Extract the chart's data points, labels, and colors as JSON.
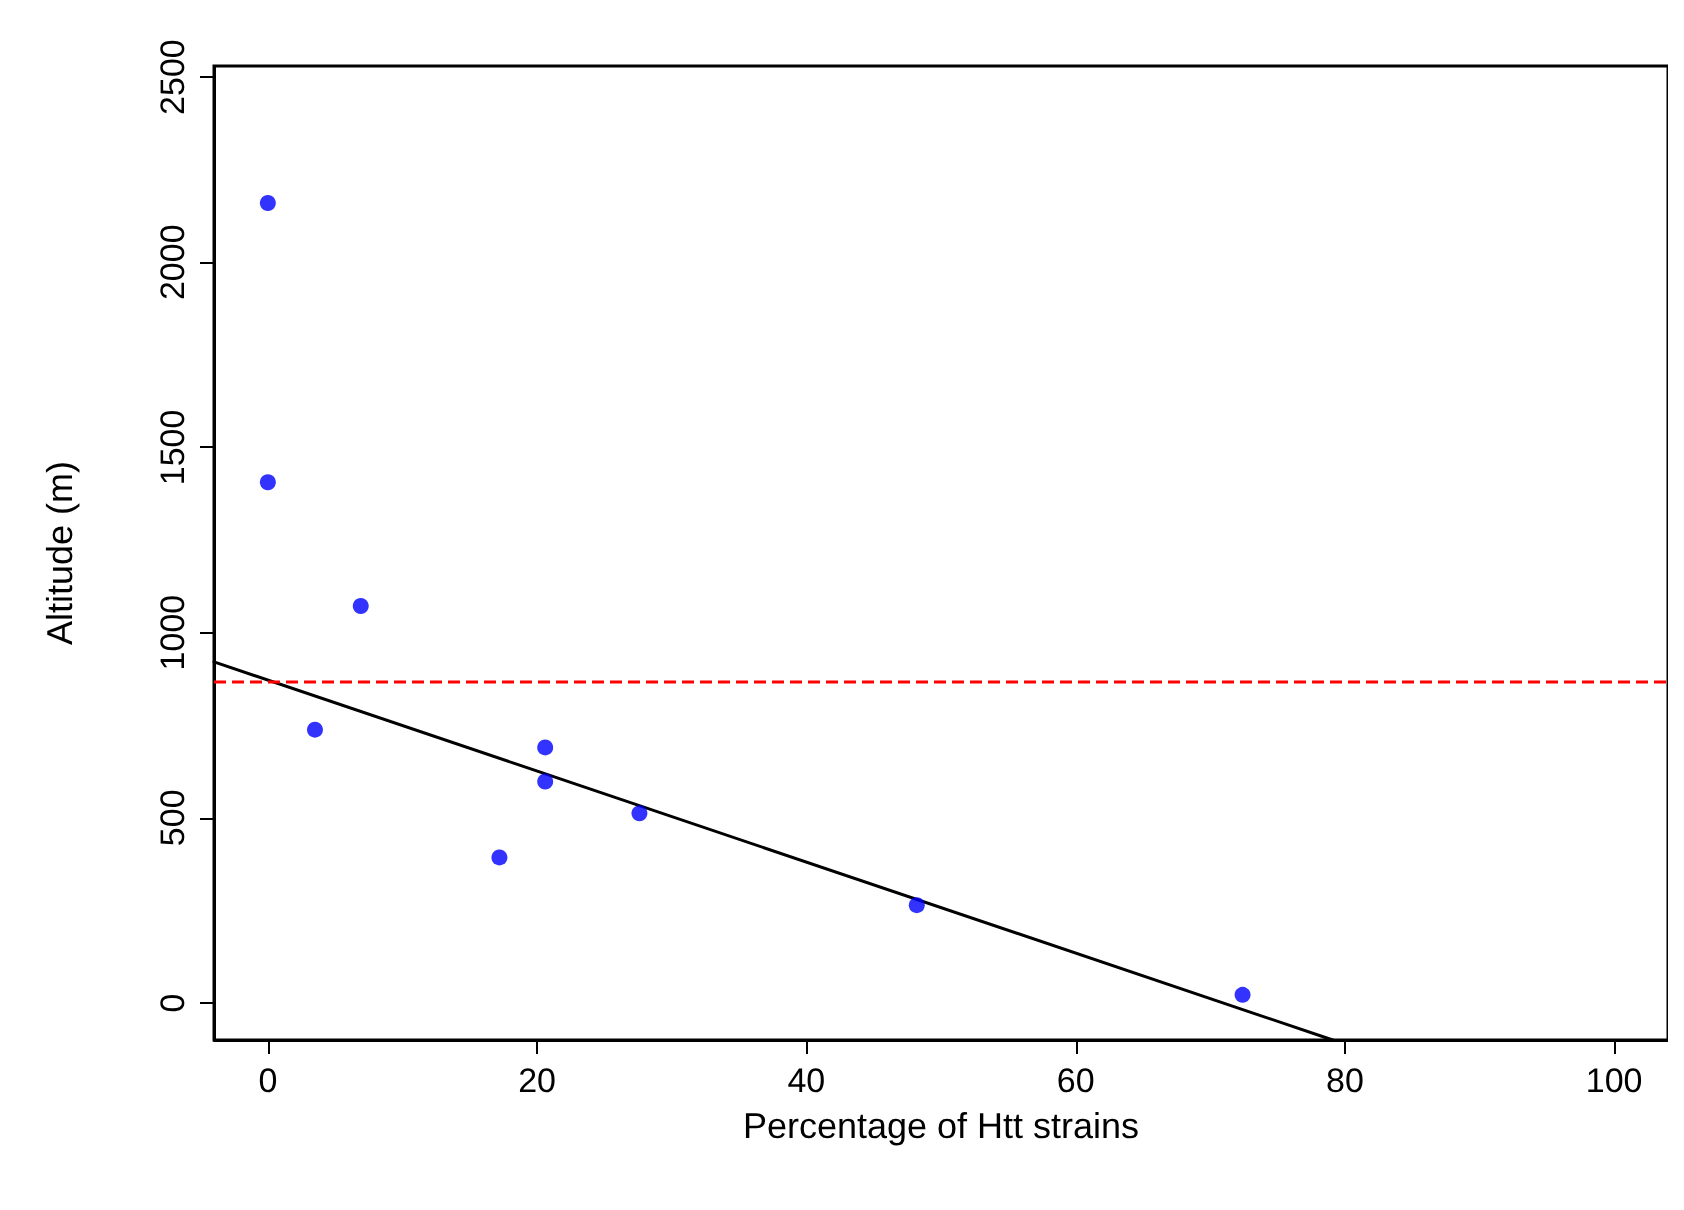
{
  "chart_data": {
    "type": "scatter",
    "xlabel": "Percentage of Htt strains",
    "ylabel": "Altitude (m)",
    "xlim": [
      -4,
      104
    ],
    "ylim": [
      -100,
      2530
    ],
    "xticks": [
      0,
      20,
      40,
      60,
      80,
      100
    ],
    "yticks": [
      0,
      500,
      1000,
      1500,
      2000,
      2500
    ],
    "grid": false,
    "series": [
      {
        "color": "#0000ff",
        "marker": "circle",
        "x": [
          0,
          0,
          6.9,
          3.5,
          20.6,
          20.6,
          27.6,
          17.2,
          48.2,
          72.4
        ],
        "values": [
          2160,
          1406,
          1072,
          738,
          690,
          598,
          512,
          393,
          264,
          22
        ]
      },
      {
        "type": "line",
        "color": "#000000",
        "line_style": "solid",
        "marker": "none",
        "x": [
          -4,
          79.1
        ],
        "values": [
          921,
          -100
        ]
      }
    ],
    "ref_lines": [
      {
        "axis": "y",
        "value": 867,
        "color": "#ff0000",
        "line_style": "dashed"
      }
    ]
  }
}
